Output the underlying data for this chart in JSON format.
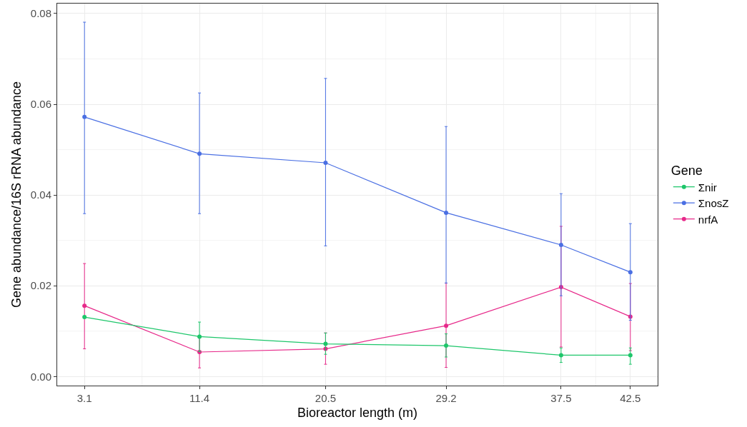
{
  "chart_data": {
    "type": "line",
    "xlabel": "Bioreactor length (m)",
    "ylabel": "Gene abundance/16S rRNA abundance",
    "legend_title": "Gene",
    "x": [
      3.1,
      11.4,
      20.5,
      29.2,
      37.5,
      42.5
    ],
    "series": [
      {
        "name": "Σnir",
        "color": "#1dc66a",
        "values": [
          0.0131,
          0.0088,
          0.0072,
          0.0068,
          0.0047,
          0.0047
        ],
        "errors": [
          null,
          [
            0.0055,
            0.012
          ],
          [
            0.0049,
            0.0096
          ],
          [
            0.0043,
            0.0094
          ],
          [
            0.0031,
            0.0063
          ],
          [
            0.0027,
            0.0063
          ]
        ]
      },
      {
        "name": "ΣnosZ",
        "color": "#4a6fe3",
        "values": [
          0.0572,
          0.0491,
          0.0471,
          0.0361,
          0.029,
          0.023
        ],
        "errors": [
          [
            0.0359,
            0.0781
          ],
          [
            0.0359,
            0.0625
          ],
          [
            0.0288,
            0.0657
          ],
          [
            0.0206,
            0.0551
          ],
          [
            0.0178,
            0.0403
          ],
          [
            0.0124,
            0.0337
          ]
        ]
      },
      {
        "name": "nrfA",
        "color": "#e7298a",
        "values": [
          0.0156,
          0.0054,
          0.0061,
          0.0112,
          0.0197,
          0.0132
        ],
        "errors": [
          [
            0.0061,
            0.0249
          ],
          [
            0.0019,
            0.0085
          ],
          [
            0.0027,
            0.0096
          ],
          [
            0.002,
            0.0206
          ],
          [
            0.0065,
            0.0331
          ],
          [
            0.0057,
            0.0205
          ]
        ]
      }
    ],
    "xlim": [
      1.13,
      44.47
    ],
    "xticks": [
      3.1,
      11.4,
      20.5,
      29.2,
      37.5,
      42.5
    ],
    "ylim": [
      -0.002,
      0.0822
    ],
    "yticks": [
      {
        "value": 0,
        "label": "0.00"
      },
      {
        "value": 0.02,
        "label": "0.02"
      },
      {
        "value": 0.04,
        "label": "0.04"
      },
      {
        "value": 0.06,
        "label": "0.06"
      },
      {
        "value": 0.08,
        "label": "0.08"
      }
    ],
    "grid": true,
    "legend": "right",
    "marker": "circle",
    "line_style": "solid"
  }
}
